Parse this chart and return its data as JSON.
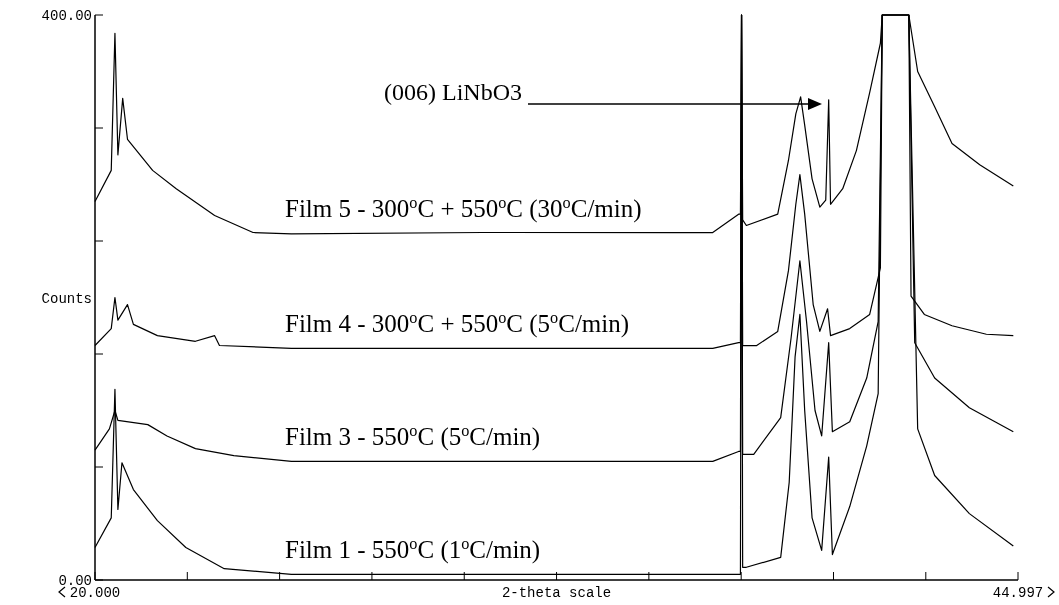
{
  "chart_data": {
    "type": "line",
    "xlabel": "2-theta scale",
    "ylabel": "Counts",
    "xlim": [
      20,
      44.997
    ],
    "ylim": [
      0,
      400
    ],
    "xticks": [
      {
        "value": 20,
        "label": "20.000"
      },
      {
        "value": 22.5,
        "label": null
      },
      {
        "value": 25,
        "label": null
      },
      {
        "value": 27.5,
        "label": null
      },
      {
        "value": 30,
        "label": null
      },
      {
        "value": 32.5,
        "label": null
      },
      {
        "value": 35,
        "label": null
      },
      {
        "value": 37.5,
        "label": null
      },
      {
        "value": 40,
        "label": null
      },
      {
        "value": 42.5,
        "label": null
      },
      {
        "value": 44.997,
        "label": "44.997"
      }
    ],
    "yticks": [
      {
        "value": 0,
        "label": "0.00"
      },
      {
        "value": 80,
        "label": null
      },
      {
        "value": 160,
        "label": null
      },
      {
        "value": 240,
        "label": null
      },
      {
        "value": 320,
        "label": null
      },
      {
        "value": 400,
        "label": "400.00"
      }
    ],
    "annotations": [
      "(006) LiNbO3"
    ],
    "series": [
      {
        "name": "Film 5 - 300$^{o}$C + 550$^{o}$C (30$^{o}$C/min)",
        "color": "#000000",
        "x": [
          20.0,
          20.44,
          20.54,
          20.62,
          20.75,
          20.88,
          21.56,
          22.2,
          23.24,
          24.28,
          25.32,
          30.5,
          35.69,
          36.73,
          37.43,
          37.48,
          37.51,
          37.54,
          37.64,
          38.49,
          38.78,
          38.98,
          39.11,
          39.22,
          39.42,
          39.63,
          39.79,
          39.87,
          39.92,
          40.25,
          40.62,
          40.98,
          41.27,
          41.32,
          42.04,
          42.28,
          42.74,
          43.21,
          43.96,
          44.87
        ],
        "values": [
          268,
          290,
          387,
          301,
          341,
          312,
          290,
          277,
          258,
          246,
          245,
          246,
          246,
          246,
          259,
          259,
          400,
          255,
          251,
          259,
          297,
          330,
          342,
          322,
          284,
          264,
          269,
          340,
          266,
          277,
          304,
          345,
          380,
          400,
          400,
          360,
          335,
          309,
          294,
          279
        ]
      },
      {
        "name": "Film 4 - 300$^{o}$C + 550$^{o}$C (5$^{o}$C/min)",
        "color": "#000000",
        "x": [
          20.0,
          20.44,
          20.54,
          20.62,
          20.88,
          21.04,
          21.69,
          22.72,
          23.24,
          23.37,
          25.32,
          30.5,
          35.69,
          36.73,
          37.43,
          37.48,
          37.51,
          37.54,
          37.92,
          38.49,
          38.78,
          38.98,
          39.09,
          39.22,
          39.45,
          39.63,
          39.84,
          39.92,
          40.44,
          40.98,
          41.27,
          41.32,
          42.04,
          42.1,
          42.46,
          43.21,
          44.14,
          44.87
        ],
        "values": [
          166,
          178,
          200,
          184,
          195,
          181,
          173,
          169,
          173,
          166,
          164,
          164,
          164,
          164,
          168,
          168,
          400,
          166,
          166,
          176,
          219,
          266,
          287,
          259,
          195,
          176,
          192,
          173,
          178,
          188,
          221,
          400,
          400,
          201,
          188,
          180,
          174,
          173
        ]
      },
      {
        "name": "Film 3 - 550$^{o}$C (5$^{o}$C/min)",
        "color": "#000000",
        "x": [
          20.0,
          20.39,
          20.54,
          20.62,
          21.43,
          21.95,
          22.72,
          23.76,
          25.32,
          30.5,
          35.69,
          36.73,
          37.43,
          37.48,
          37.51,
          37.54,
          37.84,
          38.57,
          38.85,
          39.09,
          39.27,
          39.5,
          39.68,
          39.87,
          39.97,
          40.44,
          40.9,
          41.21,
          41.32,
          42.04,
          42.2,
          42.74,
          43.68,
          44.87
        ],
        "values": [
          92,
          107,
          120,
          113,
          110,
          102,
          93,
          88,
          84,
          84,
          84,
          84,
          91,
          91,
          400,
          89,
          89,
          115,
          171,
          226,
          183,
          120,
          102,
          168,
          105,
          112,
          143,
          183,
          400,
          400,
          168,
          143,
          122,
          105
        ]
      },
      {
        "name": "Film 1 - 550$^{o}$C (1$^{o}$C/min)",
        "color": "#000000",
        "x": [
          20.0,
          20.44,
          20.54,
          20.62,
          20.73,
          21.04,
          21.69,
          22.46,
          23.5,
          25.32,
          30.5,
          35.69,
          37.38,
          37.48,
          37.51,
          37.54,
          37.64,
          38.57,
          38.8,
          38.96,
          39.09,
          39.22,
          39.42,
          39.68,
          39.87,
          39.97,
          40.44,
          40.9,
          41.21,
          41.32,
          42.04,
          42.28,
          42.74,
          43.68,
          44.87
        ],
        "values": [
          23,
          44,
          135,
          50,
          83,
          64,
          42,
          23,
          8,
          4,
          4,
          4,
          4,
          4,
          400,
          9,
          9,
          16,
          69,
          158,
          188,
          120,
          44,
          21,
          87,
          18,
          52,
          95,
          132,
          400,
          400,
          107,
          74,
          47,
          24
        ]
      }
    ]
  }
}
